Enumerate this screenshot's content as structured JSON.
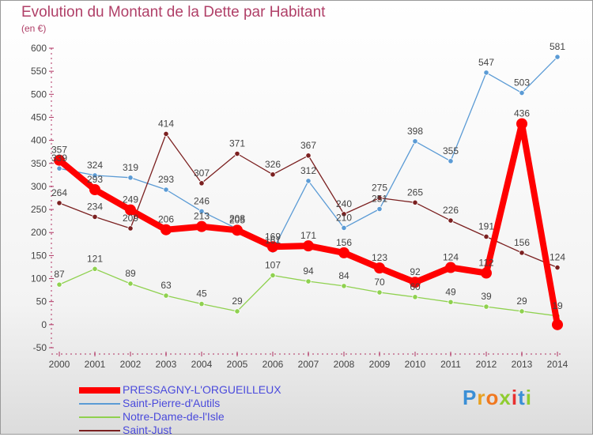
{
  "chart_data": {
    "type": "line",
    "title": "Evolution du Montant de la Dette par Habitant",
    "subtitle": "(en €)",
    "x": [
      "2000",
      "2001",
      "2002",
      "2003",
      "2004",
      "2005",
      "2006",
      "2007",
      "2008",
      "2009",
      "2010",
      "2011",
      "2012",
      "2013",
      "2014"
    ],
    "ylim": [
      -50,
      600
    ],
    "yticks": [
      -50,
      0,
      50,
      100,
      150,
      200,
      250,
      300,
      350,
      400,
      450,
      500,
      550,
      600
    ],
    "grid": false,
    "legend_position": "bottom-left",
    "series": [
      {
        "name": "Saint-Pierre-d'Autils",
        "color": "#5b9bd5",
        "values": [
          339,
          324,
          319,
          293,
          246,
          208,
          161,
          312,
          210,
          251,
          398,
          355,
          547,
          503,
          581
        ],
        "labels": [
          "339",
          "324",
          "319",
          "293",
          "246",
          "208",
          "161",
          "312",
          "210",
          "251",
          "398",
          "355",
          "547",
          "503",
          "581"
        ]
      },
      {
        "name": "Notre-Dame-de-l'Isle",
        "color": "#8fd14f",
        "values": [
          87,
          121,
          89,
          63,
          45,
          29,
          107,
          94,
          84,
          70,
          60,
          49,
          39,
          29,
          19
        ],
        "labels": [
          "87",
          "121",
          "89",
          "63",
          "45",
          "29",
          "107",
          "94",
          "84",
          "70",
          "60",
          "49",
          "39",
          "29",
          "19"
        ]
      },
      {
        "name": "Saint-Just",
        "color": "#7b2020",
        "values": [
          264,
          234,
          209,
          414,
          307,
          371,
          326,
          367,
          240,
          275,
          265,
          226,
          191,
          156,
          124
        ],
        "labels": [
          "264",
          "234",
          "209",
          "414",
          "307",
          "371",
          "326",
          "367",
          "240",
          "275",
          "265",
          "226",
          "191",
          "156",
          "124"
        ]
      },
      {
        "name": "PRESSAGNY-L'ORGUEILLEUX",
        "color": "#ff0000",
        "values": [
          357,
          293,
          249,
          206,
          213,
          205,
          169,
          171,
          156,
          123,
          92,
          124,
          112,
          436,
          0
        ],
        "labels": [
          "357",
          "293",
          "249",
          "206",
          "213",
          "205",
          "169",
          "171",
          "156",
          "123",
          "92",
          "124",
          "112",
          "436",
          ""
        ]
      }
    ],
    "legend": [
      "PRESSAGNY-L'ORGUEILLEUX",
      "Saint-Pierre-d'Autils",
      "Notre-Dame-de-l'Isle",
      "Saint-Just"
    ]
  },
  "logo": {
    "letters": [
      "P",
      "r",
      "o",
      "x",
      "i",
      "t",
      "i"
    ],
    "colors": [
      "#3a8fd6",
      "#e8a020",
      "#f07820",
      "#8fcc30",
      "#e83030",
      "#3a8fd6",
      "#8fcc30"
    ]
  }
}
